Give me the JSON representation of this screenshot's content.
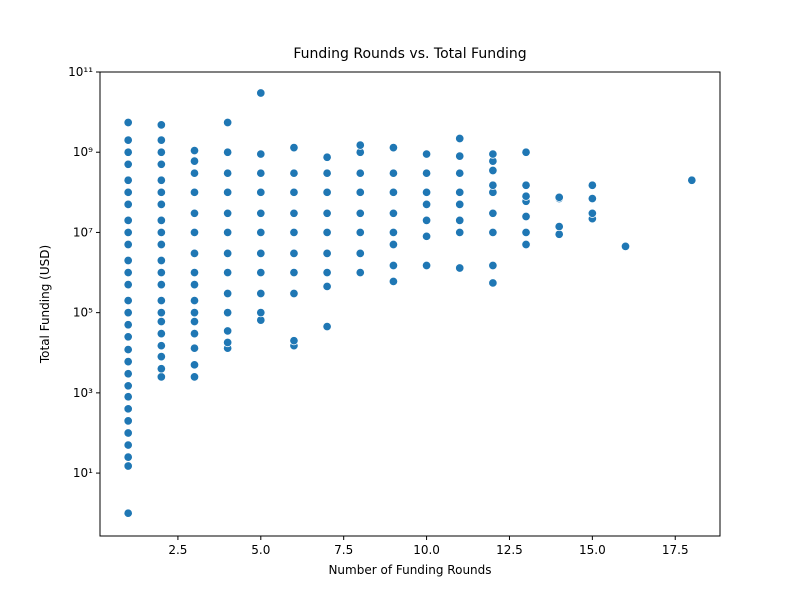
{
  "chart_data": {
    "type": "scatter",
    "title": "Funding Rounds vs. Total Funding",
    "x_label": "Number of Funding Rounds",
    "y_label": "Total Funding (USD)",
    "color": "#1f77b4",
    "yscale": "log",
    "xlim": [
      0.15,
      18.85
    ],
    "ylim": [
      0.27,
      100000000000
    ],
    "xticks": [
      2.5,
      {
        "value": 5,
        "label": "5.0"
      },
      7.5,
      {
        "value": 10,
        "label": "10.0"
      },
      12.5,
      {
        "value": 15,
        "label": "15.0"
      },
      17.5
    ],
    "yticks": [
      {
        "value": 10,
        "label": "10¹"
      },
      {
        "value": 1000,
        "label": "10³"
      },
      {
        "value": 100000,
        "label": "10⁵"
      },
      {
        "value": 10000000,
        "label": "10⁷"
      },
      {
        "value": 1000000000,
        "label": "10⁹"
      },
      {
        "value": 100000000000,
        "label": "10¹¹"
      }
    ],
    "x": [
      1,
      1,
      1,
      1,
      1,
      1,
      1,
      1,
      1,
      1,
      1,
      1,
      1,
      1,
      1,
      1,
      1,
      1,
      1,
      1,
      1,
      1,
      1,
      1,
      1,
      1,
      1,
      1,
      1,
      2,
      2,
      2,
      2,
      2,
      2,
      2,
      2,
      2,
      2,
      2,
      2,
      2,
      2,
      2,
      2,
      2,
      2,
      2,
      2,
      2,
      3,
      3,
      3,
      3,
      3,
      3,
      3,
      3,
      3,
      3,
      3,
      3,
      3,
      3,
      3,
      3,
      4,
      4,
      4,
      4,
      4,
      4,
      4,
      4,
      4,
      4,
      4,
      4,
      4,
      5,
      5,
      5,
      5,
      5,
      5,
      5,
      5,
      5,
      5,
      5,
      6,
      6,
      6,
      6,
      6,
      6,
      6,
      6,
      6,
      6,
      7,
      7,
      7,
      7,
      7,
      7,
      7,
      7,
      7,
      8,
      8,
      8,
      8,
      8,
      8,
      8,
      8,
      9,
      9,
      9,
      9,
      9,
      9,
      9,
      9,
      10,
      10,
      10,
      10,
      10,
      10,
      10,
      11,
      11,
      11,
      11,
      11,
      11,
      11,
      11,
      12,
      12,
      12,
      12,
      12,
      12,
      12,
      12,
      12,
      13,
      13,
      13,
      13,
      13,
      13,
      13,
      14,
      14,
      14,
      14,
      15,
      15,
      15,
      15,
      16,
      18
    ],
    "y": [
      1,
      15,
      25,
      50,
      100,
      200,
      400,
      800,
      1500,
      3000,
      6000,
      12000,
      25000,
      50000,
      100000,
      200000,
      500000,
      1000000,
      2000000,
      5000000,
      10000000,
      20000000,
      50000000,
      100000000,
      200000000,
      500000000,
      1000000000,
      2000000000,
      5500000000,
      2500,
      4000,
      8000,
      15000,
      30000,
      60000,
      100000,
      200000,
      500000,
      1000000,
      2000000,
      5000000,
      10000000,
      20000000,
      50000000,
      100000000,
      200000000,
      500000000,
      1000000000,
      2000000000,
      4800000000,
      2500,
      5000,
      13000,
      30000,
      60000,
      100000,
      200000,
      500000,
      1000000,
      3000000,
      10000000,
      30000000,
      100000000,
      300000000,
      600000000,
      1100000000,
      13000,
      18000,
      35000,
      100000,
      300000,
      1000000,
      3000000,
      10000000,
      30000000,
      100000000,
      300000000,
      1000000000,
      5500000000,
      65000,
      100000,
      300000,
      1000000,
      3000000,
      10000000,
      30000000,
      100000000,
      300000000,
      900000000,
      30000000000,
      15000,
      20000,
      300000,
      1000000,
      3000000,
      10000000,
      30000000,
      100000000,
      300000000,
      1300000000,
      45000,
      450000,
      1000000,
      3000000,
      10000000,
      30000000,
      100000000,
      300000000,
      750000000,
      1000000,
      3000000,
      10000000,
      30000000,
      100000000,
      300000000,
      1000000000,
      1500000000,
      600000,
      1500000,
      5000000,
      10000000,
      30000000,
      100000000,
      300000000,
      1300000000,
      1500000,
      8000000,
      20000000,
      50000000,
      100000000,
      300000000,
      900000000,
      1300000,
      10000000,
      20000000,
      50000000,
      100000000,
      300000000,
      800000000,
      2200000000,
      550000,
      1500000,
      10000000,
      30000000,
      100000000,
      150000000,
      350000000,
      600000000,
      900000000,
      5000000,
      10000000,
      25000000,
      60000000,
      80000000,
      150000000,
      1000000000,
      9000000,
      14000000,
      70000000,
      75000000,
      22000000,
      30000000,
      70000000,
      150000000,
      4500000,
      200000000
    ]
  }
}
